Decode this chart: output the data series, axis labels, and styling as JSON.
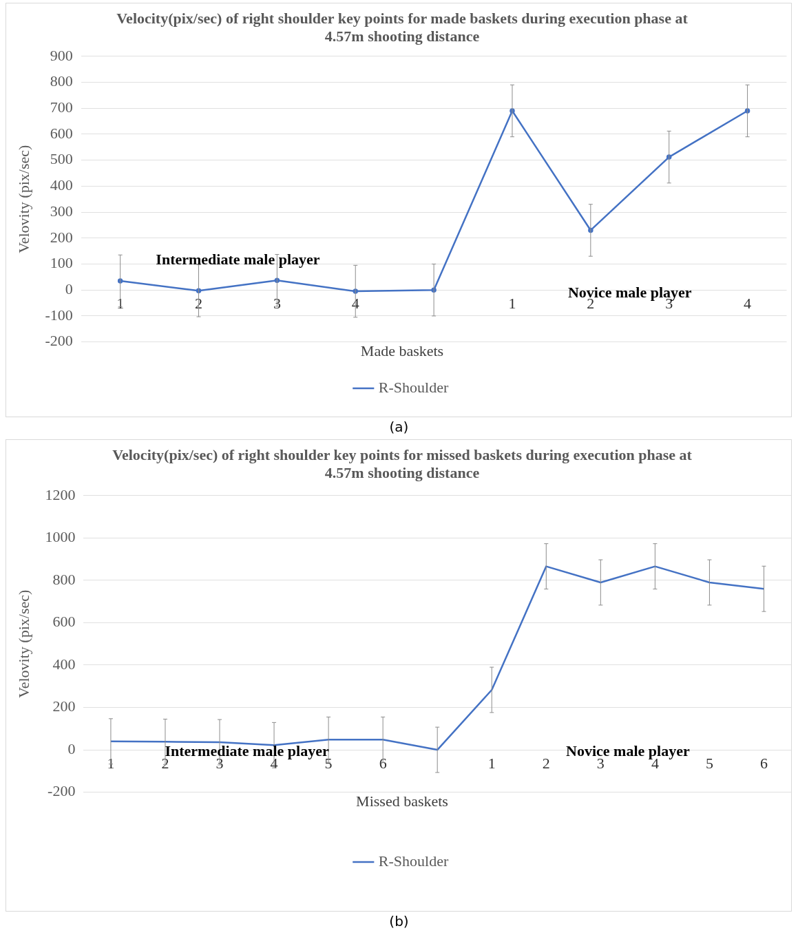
{
  "chart_data": [
    {
      "type": "line",
      "title": "Velocity(pix/sec) of right shoulder key points for made baskets during execution phase at 4.57m shooting distance",
      "xlabel": "Made baskets",
      "ylabel": "Velovity (pix/sec)",
      "categories": [
        "1",
        "2",
        "3",
        "4",
        null,
        "1",
        "2",
        "3",
        "4"
      ],
      "series": [
        {
          "name": "R-Shoulder",
          "color": "#4472c4",
          "values": [
            35,
            -3,
            37,
            -5,
            0,
            690,
            230,
            512,
            690
          ],
          "errors": [
            100,
            100,
            100,
            100,
            100,
            100,
            100,
            100,
            100
          ]
        }
      ],
      "ylim": [
        -200,
        900
      ],
      "yticks": [
        -200,
        -100,
        0,
        100,
        200,
        300,
        400,
        500,
        600,
        700,
        800,
        900
      ],
      "grid": "y",
      "legend": "bottom",
      "marker": "circle",
      "annotations": [
        "Intermediate male player",
        "Novice male player",
        "(a)"
      ]
    },
    {
      "type": "line",
      "title": "Velocity(pix/sec) of right shoulder key points for missed baskets during execution phase at 4.57m shooting distance",
      "xlabel": "Missed baskets",
      "ylabel": "Velovity (pix/sec)",
      "categories": [
        "1",
        "2",
        "3",
        "4",
        "5",
        "6",
        null,
        "1",
        "2",
        "3",
        "4",
        "5",
        "6"
      ],
      "series": [
        {
          "name": "R-Shoulder",
          "color": "#4472c4",
          "values": [
            40,
            38,
            36,
            22,
            48,
            48,
            0,
            283,
            866,
            790,
            866,
            790,
            760
          ],
          "errors": [
            107,
            107,
            107,
            107,
            107,
            107,
            107,
            107,
            107,
            107,
            107,
            107,
            107
          ]
        }
      ],
      "ylim": [
        -200,
        1200
      ],
      "yticks": [
        -200,
        0,
        200,
        400,
        600,
        800,
        1000,
        1200
      ],
      "grid": "y",
      "legend": "bottom",
      "marker": "none",
      "annotations": [
        "Intermediate male player",
        "Novice male player",
        "(b)"
      ]
    }
  ]
}
